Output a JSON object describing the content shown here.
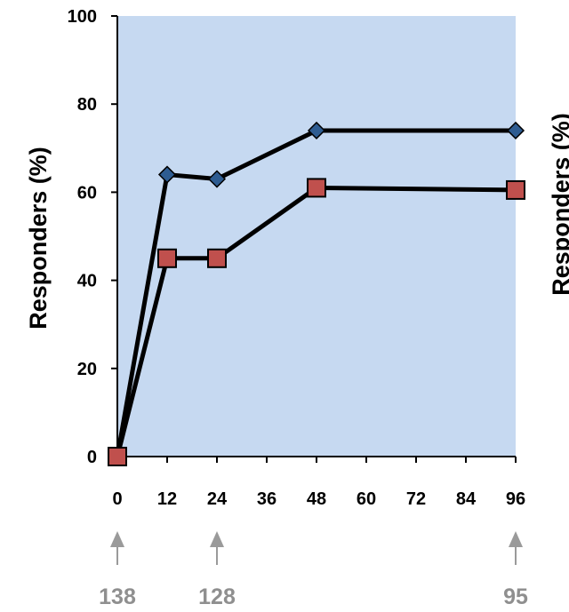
{
  "chart_data": {
    "type": "line",
    "ylabel": "Responders (%)",
    "xlabel": "",
    "ylim": [
      0,
      100
    ],
    "xlim": [
      0,
      96
    ],
    "yticks": [
      "0",
      "20",
      "40",
      "60",
      "80",
      "100"
    ],
    "xticks": [
      "0",
      "12",
      "24",
      "36",
      "48",
      "60",
      "72",
      "84",
      "96"
    ],
    "x": [
      0,
      12,
      24,
      48,
      96
    ],
    "series": [
      {
        "marker": "diamond",
        "color": "#2e5c91",
        "values": [
          0,
          64,
          63,
          74,
          74
        ]
      },
      {
        "marker": "square",
        "color": "#c0504d",
        "values": [
          0,
          45,
          45,
          61,
          60.5
        ]
      }
    ],
    "plot_background": "#c6d9f1",
    "line_color": "#000000",
    "annotations": [
      {
        "x": 0,
        "label": "138"
      },
      {
        "x": 24,
        "label": "128"
      },
      {
        "x": 96,
        "label": "95"
      }
    ],
    "arrow_color": "#9a9a9a",
    "cropped_right_panel_ylabel": "Responders (%)"
  }
}
